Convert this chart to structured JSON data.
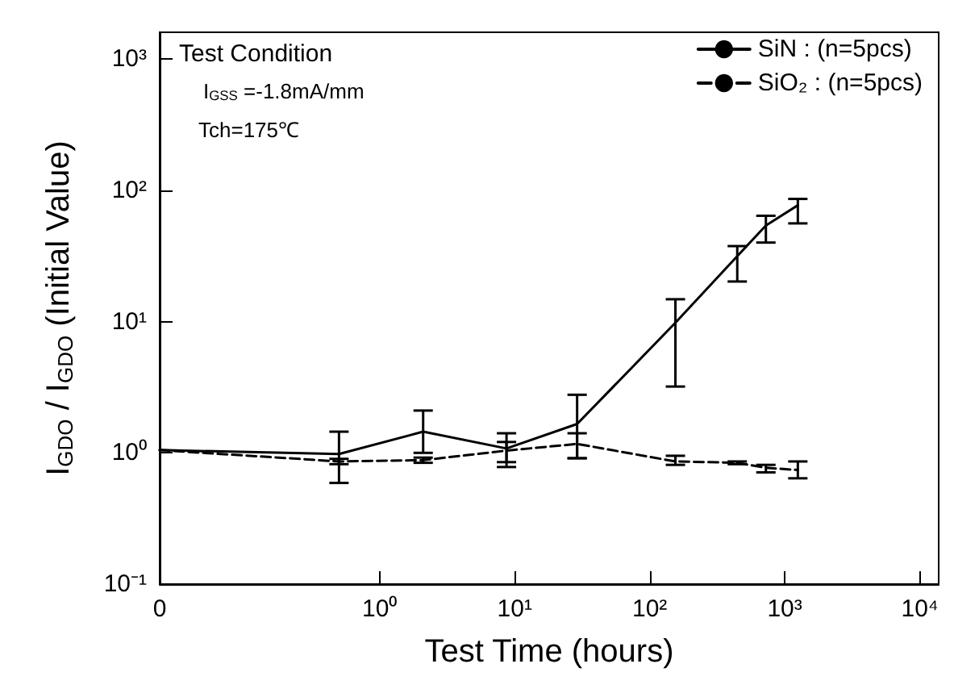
{
  "chart_data": {
    "type": "line",
    "xlabel": "Test Time (hours)",
    "ylabel": "I$_{GDO}$ / I$_{GDO}$ (Initial Value)",
    "annotations": [
      "Test Condition",
      "I$_{GSS}$ =-1.8mA/mm",
      "Tch=175℃"
    ],
    "log": "xy",
    "xlim": [
      0.0235,
      13800
    ],
    "ylim": [
      0.1,
      1600
    ],
    "xticks": [
      {
        "value": 0.0235,
        "label": "0"
      },
      {
        "value": 1,
        "label": "10⁰"
      },
      {
        "value": 10,
        "label": "10¹"
      },
      {
        "value": 100,
        "label": "10²"
      },
      {
        "value": 1000,
        "label": "10³"
      },
      {
        "value": 10000,
        "label": "10⁴"
      }
    ],
    "yticks": [
      {
        "value": 0.1,
        "label": "10⁻¹"
      },
      {
        "value": 1,
        "label": "10⁰"
      },
      {
        "value": 10,
        "label": "10¹"
      },
      {
        "value": 100,
        "label": "10²"
      },
      {
        "value": 1000,
        "label": "10³"
      }
    ],
    "x": [
      0.0235,
      0.5,
      2.1,
      8.7,
      29,
      155,
      445,
      725,
      1250
    ],
    "series": [
      {
        "name": "SiN : (n=5pcs)",
        "color": "#000000",
        "line_style": "solid",
        "values": [
          1.05,
          0.98,
          1.45,
          1.08,
          1.66,
          9.8,
          31.5,
          54,
          77
        ],
        "errors": [
          null,
          [
            0.59,
            1.45
          ],
          [
            1.0,
            2.1
          ],
          [
            0.78,
            1.41
          ],
          [
            0.91,
            2.77
          ],
          [
            3.2,
            14.8
          ],
          [
            20.2,
            37.6
          ],
          [
            40,
            64
          ],
          [
            56,
            86
          ]
        ]
      },
      {
        "name": "SiO₂ : (n=5pcs)",
        "color": "#000000",
        "line_style": "dashed",
        "values": [
          1.05,
          0.86,
          0.88,
          1.04,
          1.17,
          0.86,
          0.84,
          0.77,
          0.74
        ],
        "errors": [
          null,
          [
            0.82,
            0.9
          ],
          [
            0.84,
            0.92
          ],
          [
            0.85,
            1.21
          ],
          [
            0.91,
            1.41
          ],
          [
            0.81,
            0.95
          ],
          [
            0.82,
            0.86
          ],
          [
            0.71,
            0.81
          ],
          [
            0.64,
            0.86
          ]
        ]
      }
    ],
    "marker": "none",
    "grid": false,
    "legend": "top right"
  }
}
